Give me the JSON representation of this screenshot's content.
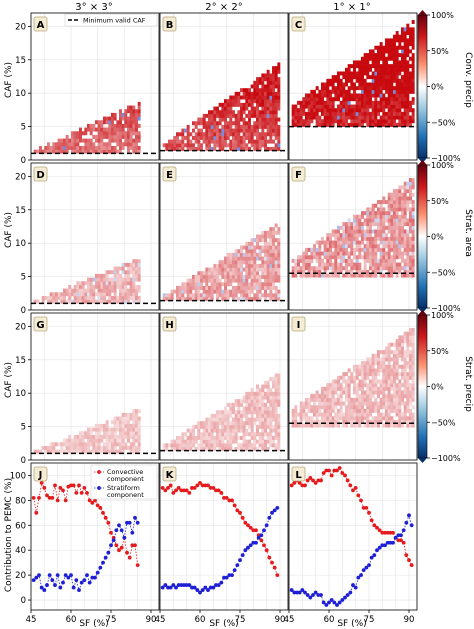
{
  "figure": {
    "column_titles": [
      "3° × 3°",
      "2° × 2°",
      "1° × 1°"
    ],
    "row_labels": [
      "Conv. precip",
      "Strat. area",
      "Strat. precip"
    ],
    "legend_dashed": "Minimum valid CAF",
    "colorbar_ticks": [
      "100%",
      "50%",
      "0%",
      "−50%",
      "−100%"
    ],
    "colors": {
      "positive": "#d62728",
      "negative": "#1f3fbf",
      "convective": "#e41a1c",
      "stratiform": "#1f1fd6",
      "dashed": "#000000"
    }
  },
  "chart_data": [
    {
      "type": "heatmap",
      "panels": [
        {
          "letter": "A",
          "row": 0,
          "col": 0,
          "min_valid_caf": 1.0
        },
        {
          "letter": "B",
          "row": 0,
          "col": 1,
          "min_valid_caf": 1.4
        },
        {
          "letter": "C",
          "row": 0,
          "col": 2,
          "min_valid_caf": 5.0
        },
        {
          "letter": "D",
          "row": 1,
          "col": 0,
          "min_valid_caf": 1.0
        },
        {
          "letter": "E",
          "row": 1,
          "col": 1,
          "min_valid_caf": 1.4
        },
        {
          "letter": "F",
          "row": 1,
          "col": 2,
          "min_valid_caf": 5.5
        },
        {
          "letter": "G",
          "row": 2,
          "col": 0,
          "min_valid_caf": 1.0
        },
        {
          "letter": "H",
          "row": 2,
          "col": 1,
          "min_valid_caf": 1.4
        },
        {
          "letter": "I",
          "row": 2,
          "col": 2,
          "min_valid_caf": 5.5
        }
      ],
      "ylabel": "CAF (%)",
      "ylim": [
        0,
        22
      ],
      "yticks": [
        0,
        5,
        10,
        15,
        20
      ],
      "xlim": [
        45,
        93
      ],
      "colorbar_range": [
        -100,
        100
      ]
    },
    {
      "type": "line",
      "panels": [
        {
          "letter": "J",
          "convective": {
            "x": [
              46,
              47,
              48,
              49,
              50,
              51,
              52,
              53,
              54,
              55,
              56,
              57,
              58,
              59,
              60,
              61,
              62,
              63,
              64,
              65,
              66,
              67,
              68,
              69,
              70,
              71,
              72,
              73,
              74,
              75,
              76,
              77,
              78,
              79,
              80,
              81,
              82,
              83,
              84,
              85
            ],
            "y": [
              82,
              70,
              82,
              94,
              90,
              84,
              82,
              82,
              92,
              80,
              90,
              88,
              80,
              91,
              92,
              92,
              86,
              92,
              86,
              90,
              86,
              80,
              78,
              80,
              76,
              74,
              70,
              66,
              62,
              54,
              50,
              44,
              40,
              42,
              50,
              38,
              34,
              44,
              44,
              28
            ]
          },
          "stratiform": {
            "x": [
              46,
              47,
              48,
              49,
              50,
              51,
              52,
              53,
              54,
              55,
              56,
              57,
              58,
              59,
              60,
              61,
              62,
              63,
              64,
              65,
              66,
              67,
              68,
              69,
              70,
              71,
              72,
              73,
              74,
              75,
              76,
              77,
              78,
              79,
              80,
              81,
              82,
              83,
              84,
              85
            ],
            "y": [
              16,
              18,
              20,
              10,
              8,
              12,
              20,
              16,
              12,
              20,
              10,
              14,
              20,
              18,
              20,
              10,
              16,
              8,
              14,
              16,
              20,
              14,
              18,
              18,
              22,
              26,
              30,
              34,
              38,
              44,
              48,
              56,
              60,
              56,
              50,
              62,
              62,
              54,
              66,
              62
            ]
          }
        },
        {
          "letter": "K",
          "convective": {
            "x": [
              46,
              47,
              48,
              49,
              50,
              51,
              52,
              53,
              54,
              55,
              56,
              57,
              58,
              59,
              60,
              61,
              62,
              63,
              64,
              65,
              66,
              67,
              68,
              69,
              70,
              71,
              72,
              73,
              74,
              75,
              76,
              77,
              78,
              79,
              80,
              81,
              82,
              83,
              84,
              85,
              86,
              87,
              88,
              89
            ],
            "y": [
              90,
              88,
              90,
              92,
              86,
              88,
              90,
              88,
              88,
              88,
              86,
              90,
              90,
              92,
              94,
              92,
              92,
              92,
              90,
              90,
              88,
              88,
              86,
              82,
              82,
              80,
              80,
              76,
              72,
              70,
              66,
              62,
              60,
              58,
              56,
              56,
              52,
              48,
              44,
              40,
              34,
              30,
              26,
              20
            ]
          },
          "stratiform": {
            "x": [
              46,
              47,
              48,
              49,
              50,
              51,
              52,
              53,
              54,
              55,
              56,
              57,
              58,
              59,
              60,
              61,
              62,
              63,
              64,
              65,
              66,
              67,
              68,
              69,
              70,
              71,
              72,
              73,
              74,
              75,
              76,
              77,
              78,
              79,
              80,
              81,
              82,
              83,
              84,
              85,
              86,
              87,
              88,
              89
            ],
            "y": [
              10,
              12,
              10,
              10,
              12,
              10,
              12,
              12,
              12,
              12,
              12,
              10,
              10,
              8,
              6,
              8,
              10,
              8,
              10,
              10,
              12,
              12,
              14,
              18,
              18,
              20,
              20,
              24,
              28,
              32,
              36,
              40,
              42,
              44,
              46,
              46,
              50,
              52,
              56,
              60,
              66,
              70,
              72,
              74
            ]
          }
        },
        {
          "letter": "L",
          "convective": {
            "x": [
              46,
              47,
              48,
              49,
              50,
              51,
              52,
              53,
              54,
              55,
              56,
              57,
              58,
              59,
              60,
              61,
              62,
              63,
              64,
              65,
              66,
              67,
              68,
              69,
              70,
              71,
              72,
              73,
              74,
              75,
              76,
              77,
              78,
              79,
              80,
              81,
              82,
              83,
              84,
              85,
              86,
              87,
              88,
              89,
              90,
              91
            ],
            "y": [
              92,
              94,
              96,
              94,
              92,
              92,
              96,
              98,
              96,
              94,
              96,
              96,
              102,
              104,
              104,
              100,
              104,
              104,
              106,
              102,
              100,
              96,
              92,
              88,
              90,
              84,
              80,
              74,
              74,
              70,
              64,
              60,
              58,
              56,
              54,
              54,
              54,
              54,
              54,
              50,
              48,
              48,
              46,
              36,
              32,
              28
            ]
          },
          "stratiform": {
            "x": [
              46,
              47,
              48,
              49,
              50,
              51,
              52,
              53,
              54,
              55,
              56,
              57,
              58,
              59,
              60,
              61,
              62,
              63,
              64,
              65,
              66,
              67,
              68,
              69,
              70,
              71,
              72,
              73,
              74,
              75,
              76,
              77,
              78,
              79,
              80,
              81,
              82,
              83,
              84,
              85,
              86,
              87,
              88,
              89,
              90,
              91
            ],
            "y": [
              8,
              6,
              6,
              6,
              8,
              6,
              4,
              2,
              4,
              6,
              4,
              4,
              -2,
              -4,
              -2,
              0,
              -2,
              -4,
              -2,
              0,
              2,
              4,
              6,
              12,
              10,
              18,
              20,
              24,
              26,
              28,
              34,
              36,
              40,
              42,
              44,
              44,
              46,
              46,
              46,
              50,
              52,
              52,
              56,
              62,
              68,
              60
            ]
          }
        }
      ],
      "ylabel": "Contribution to PEMC (%)",
      "xlabel": "SF (%)",
      "ylim": [
        -8,
        110
      ],
      "yticks": [
        0,
        20,
        40,
        60,
        80,
        100
      ],
      "xlim": [
        45,
        93
      ],
      "xticks": [
        45,
        60,
        75,
        90
      ],
      "legend": [
        "Convective component",
        "Stratiform component"
      ]
    }
  ]
}
